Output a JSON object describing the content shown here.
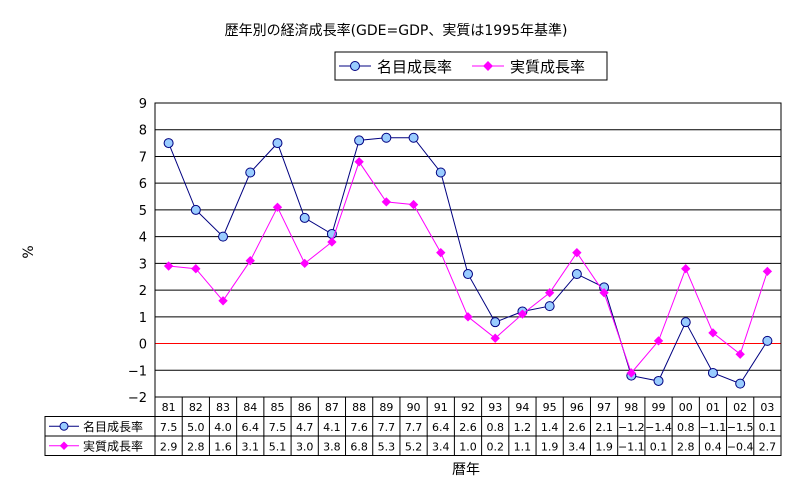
{
  "chart_data": {
    "type": "line",
    "title": "歴年別の経済成長率(GDE=GDP、実質は1995年基準)",
    "xlabel": "暦年",
    "ylabel": "%",
    "ylim": [
      -2,
      9
    ],
    "yticks": [
      9,
      8,
      7,
      6,
      5,
      4,
      3,
      2,
      1,
      0,
      -1,
      -2
    ],
    "ytick_labels": [
      "9",
      "8",
      "7",
      "6",
      "5",
      "4",
      "3",
      "2",
      "1",
      "0",
      "−1",
      "−2"
    ],
    "grid": true,
    "legend": "top-right",
    "categories": [
      "81",
      "82",
      "83",
      "84",
      "85",
      "86",
      "87",
      "88",
      "89",
      "90",
      "91",
      "92",
      "93",
      "94",
      "95",
      "96",
      "97",
      "98",
      "99",
      "00",
      "01",
      "02",
      "03"
    ],
    "series": [
      {
        "name": "名目成長率",
        "color": "#000080",
        "marker_color": "#99ccff",
        "marker": "circle",
        "values": [
          7.5,
          5.0,
          4.0,
          6.4,
          7.5,
          4.7,
          4.1,
          7.6,
          7.7,
          7.7,
          6.4,
          2.6,
          0.8,
          1.2,
          1.4,
          2.6,
          2.1,
          -1.2,
          -1.4,
          0.8,
          -1.1,
          -1.5,
          0.1
        ],
        "labels": [
          "7.5",
          "5.0",
          "4.0",
          "6.4",
          "7.5",
          "4.7",
          "4.1",
          "7.6",
          "7.7",
          "7.7",
          "6.4",
          "2.6",
          "0.8",
          "1.2",
          "1.4",
          "2.6",
          "2.1",
          "−1.2",
          "−1.4",
          "0.8",
          "−1.1",
          "−1.5",
          "0.1"
        ]
      },
      {
        "name": "実質成長率",
        "color": "#ff00ff",
        "marker_color": "#ff00ff",
        "marker": "diamond",
        "values": [
          2.9,
          2.8,
          1.6,
          3.1,
          5.1,
          3.0,
          3.8,
          6.8,
          5.3,
          5.2,
          3.4,
          1.0,
          0.2,
          1.1,
          1.9,
          3.4,
          1.9,
          -1.1,
          0.1,
          2.8,
          0.4,
          -0.4,
          2.7
        ],
        "labels": [
          "2.9",
          "2.8",
          "1.6",
          "3.1",
          "5.1",
          "3.0",
          "3.8",
          "6.8",
          "5.3",
          "5.2",
          "3.4",
          "1.0",
          "0.2",
          "1.1",
          "1.9",
          "3.4",
          "1.9",
          "−1.1",
          "0.1",
          "2.8",
          "0.4",
          "−0.4",
          "2.7"
        ]
      }
    ],
    "zero_line_color": "#ff0000"
  }
}
